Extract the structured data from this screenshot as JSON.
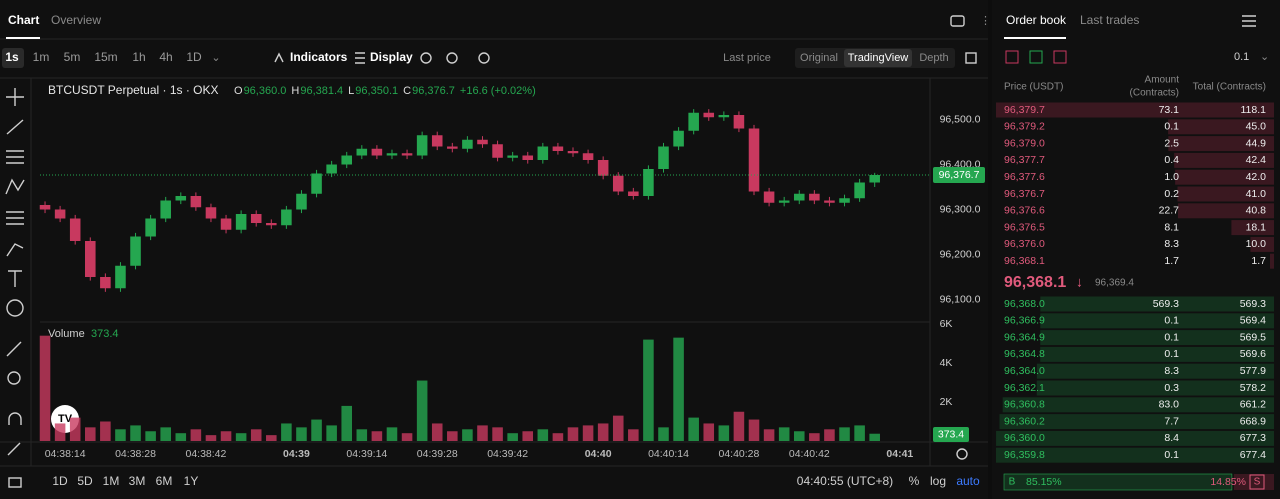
{
  "header": {
    "tabs": [
      "Chart",
      "Overview"
    ]
  },
  "toolbar": {
    "intervals": [
      "1s",
      "1m",
      "5m",
      "15m",
      "1h",
      "4h",
      "1D"
    ],
    "indicators": "Indicators",
    "display": "Display",
    "price_type": "Last price",
    "views": [
      "Original",
      "TradingView",
      "Depth"
    ]
  },
  "chart_data": {
    "type": "candlestick",
    "symbol": "BTCUSDT Perpetual · 1s · OKX",
    "ohlc_legend": [
      {
        "key": "O",
        "value": "96,360.0"
      },
      {
        "key": "H",
        "value": "96,381.4"
      },
      {
        "key": "L",
        "value": "96,350.1"
      },
      {
        "key": "C",
        "value": "96,376.7"
      }
    ],
    "change": "+16.6 (+0.02%)",
    "last_price_label": "96,376.7",
    "volume_title": "Volume",
    "up_color": "#25a750",
    "down_color": "#c8395f",
    "grid": false,
    "x": [
      16690,
      16693,
      16696,
      16699,
      16702,
      16705,
      16708,
      16711,
      16714,
      16717,
      16720,
      16723,
      16726,
      16729,
      16732,
      16735,
      16738,
      16741,
      16744,
      16747,
      16750,
      16753,
      16756,
      16759,
      16762,
      16765,
      16768,
      16771,
      16774,
      16777,
      16780,
      16783,
      16786,
      16789,
      16792,
      16795,
      16798,
      16801,
      16804,
      16807,
      16810,
      16813,
      16816,
      16819,
      16822,
      16825,
      16828,
      16831,
      16834,
      16837,
      16840,
      16843,
      16846,
      16849,
      16852,
      16855
    ],
    "open": [
      96310,
      96300,
      96280,
      96230,
      96150,
      96125,
      96175,
      96240,
      96280,
      96320,
      96330,
      96305,
      96280,
      96255,
      96290,
      96270,
      96265,
      96300,
      96335,
      96380,
      96400,
      96420,
      96435,
      96420,
      96425,
      96420,
      96465,
      96440,
      96435,
      96455,
      96445,
      96415,
      96420,
      96410,
      96440,
      96430,
      96425,
      96410,
      96375,
      96340,
      96330,
      96390,
      96440,
      96475,
      96515,
      96505,
      96510,
      96480,
      96340,
      96315,
      96320,
      96335,
      96320,
      96315,
      96325,
      96360
    ],
    "high": [
      96318,
      96308,
      96288,
      96238,
      96158,
      96183,
      96248,
      96288,
      96328,
      96338,
      96338,
      96313,
      96288,
      96298,
      96298,
      96278,
      96308,
      96343,
      96388,
      96408,
      96428,
      96443,
      96443,
      96433,
      96433,
      96473,
      96473,
      96448,
      96463,
      96463,
      96453,
      96428,
      96428,
      96448,
      96448,
      96438,
      96433,
      96418,
      96383,
      96348,
      96398,
      96448,
      96483,
      96523,
      96523,
      96518,
      96518,
      96488,
      96348,
      96328,
      96343,
      96343,
      96328,
      96333,
      96368,
      96381.4
    ],
    "low": [
      96292,
      96272,
      96222,
      96142,
      96117,
      96117,
      96167,
      96232,
      96272,
      96312,
      96297,
      96272,
      96247,
      96247,
      96262,
      96257,
      96257,
      96292,
      96327,
      96372,
      96392,
      96412,
      96412,
      96412,
      96412,
      96412,
      96432,
      96427,
      96427,
      96437,
      96407,
      96407,
      96402,
      96402,
      96422,
      96417,
      96402,
      96367,
      96332,
      96322,
      96322,
      96382,
      96432,
      96467,
      96497,
      96497,
      96472,
      96332,
      96307,
      96307,
      96312,
      96312,
      96307,
      96307,
      96317,
      96350.1
    ],
    "close": [
      96300,
      96280,
      96230,
      96150,
      96125,
      96175,
      96240,
      96280,
      96320,
      96330,
      96305,
      96280,
      96255,
      96290,
      96270,
      96265,
      96300,
      96335,
      96380,
      96400,
      96420,
      96435,
      96420,
      96425,
      96420,
      96465,
      96440,
      96435,
      96455,
      96445,
      96415,
      96420,
      96410,
      96440,
      96430,
      96425,
      96410,
      96375,
      96340,
      96330,
      96390,
      96440,
      96475,
      96515,
      96505,
      96510,
      96480,
      96340,
      96315,
      96320,
      96335,
      96320,
      96315,
      96325,
      96360,
      96376.7
    ],
    "volume": [
      5400,
      900,
      1200,
      700,
      1000,
      600,
      800,
      500,
      700,
      400,
      600,
      300,
      500,
      400,
      600,
      300,
      900,
      700,
      1100,
      800,
      1800,
      600,
      500,
      700,
      400,
      3100,
      900,
      500,
      600,
      800,
      700,
      400,
      500,
      600,
      400,
      700,
      800,
      900,
      1300,
      600,
      5200,
      700,
      5300,
      1200,
      900,
      800,
      1500,
      1100,
      600,
      700,
      500,
      400,
      600,
      700,
      800,
      373.4
    ],
    "xlim": [
      16689,
      16866
    ],
    "xticks": [
      {
        "value": 16694,
        "label": "04:38:14"
      },
      {
        "value": 16708,
        "label": "04:38:28"
      },
      {
        "value": 16722,
        "label": "04:38:42"
      },
      {
        "value": 16740,
        "label": "04:39"
      },
      {
        "value": 16754,
        "label": "04:39:14"
      },
      {
        "value": 16768,
        "label": "04:39:28"
      },
      {
        "value": 16782,
        "label": "04:39:42"
      },
      {
        "value": 16800,
        "label": "04:40"
      },
      {
        "value": 16814,
        "label": "04:40:14"
      },
      {
        "value": 16828,
        "label": "04:40:28"
      },
      {
        "value": 16842,
        "label": "04:40:42"
      },
      {
        "value": 16860,
        "label": "04:41"
      }
    ],
    "ylim": [
      96050,
      96590
    ],
    "yticks": [
      {
        "value": 96500,
        "label": "96,500.0"
      },
      {
        "value": 96400,
        "label": "96,400.0"
      },
      {
        "value": 96300,
        "label": "96,300.0"
      },
      {
        "value": 96200,
        "label": "96,200.0"
      },
      {
        "value": 96100,
        "label": "96,100.0"
      }
    ],
    "volume_ylim": [
      0,
      6000
    ],
    "volume_ticks": [
      {
        "value": 6000,
        "label": "6K"
      },
      {
        "value": 4000,
        "label": "4K"
      },
      {
        "value": 2000,
        "label": "2K"
      }
    ]
  },
  "range_bar": {
    "ranges": [
      "1D",
      "5D",
      "1M",
      "3M",
      "6M",
      "1Y"
    ],
    "clock": "04:40:55 (UTC+8)",
    "options": [
      "%",
      "log",
      "auto"
    ]
  },
  "order_book": {
    "tabs": [
      "Order book",
      "Last trades"
    ],
    "tick_size": "0.1",
    "price_header": "Price (USDT)",
    "amount_header": [
      "Amount",
      "(Contracts)"
    ],
    "total_header": "Total (Contracts)",
    "asks": [
      [
        "96,379.7",
        "73.1",
        "118.1"
      ],
      [
        "96,379.2",
        "0.1",
        "45.0"
      ],
      [
        "96,379.0",
        "2.5",
        "44.9"
      ],
      [
        "96,377.7",
        "0.4",
        "42.4"
      ],
      [
        "96,377.6",
        "1.0",
        "42.0"
      ],
      [
        "96,376.7",
        "0.2",
        "41.0"
      ],
      [
        "96,376.6",
        "22.7",
        "40.8"
      ],
      [
        "96,376.5",
        "8.1",
        "18.1"
      ],
      [
        "96,376.0",
        "8.3",
        "10.0"
      ],
      [
        "96,368.1",
        "1.7",
        "1.7"
      ]
    ],
    "mid": {
      "price": "96,368.1",
      "arrow": "↓",
      "mark": "96,369.4"
    },
    "bids": [
      [
        "96,368.0",
        "569.3",
        "569.3"
      ],
      [
        "96,366.9",
        "0.1",
        "569.4"
      ],
      [
        "96,364.9",
        "0.1",
        "569.5"
      ],
      [
        "96,364.8",
        "0.1",
        "569.6"
      ],
      [
        "96,364.0",
        "8.3",
        "577.9"
      ],
      [
        "96,362.1",
        "0.3",
        "578.2"
      ],
      [
        "96,360.8",
        "83.0",
        "661.2"
      ],
      [
        "96,360.2",
        "7.7",
        "668.9"
      ],
      [
        "96,360.0",
        "8.4",
        "677.3"
      ],
      [
        "96,359.8",
        "0.1",
        "677.4"
      ]
    ],
    "ratio": {
      "buy_tag": "B",
      "buy": 85.15,
      "buy_label": "85.15%",
      "sell": 14.85,
      "sell_label": "14.85%",
      "sell_tag": "S"
    }
  }
}
